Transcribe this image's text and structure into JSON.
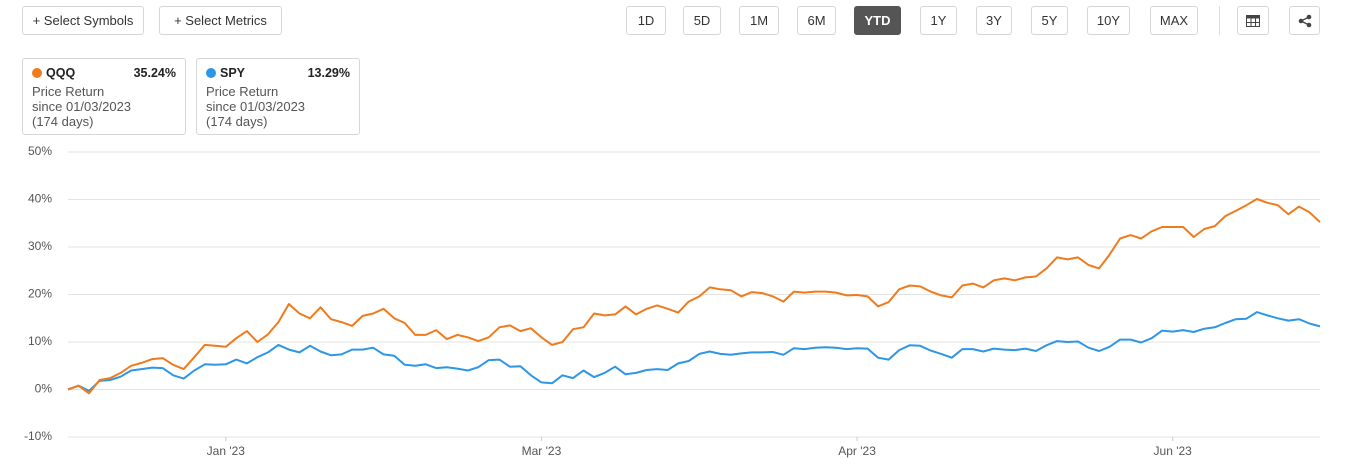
{
  "toolbar": {
    "add_buttons": [
      "+ Select Symbols",
      "+ Select Metrics"
    ],
    "ranges": [
      "1D",
      "5D",
      "1M",
      "6M",
      "YTD",
      "1Y",
      "3Y",
      "5Y",
      "10Y",
      "MAX"
    ],
    "active_range": "YTD"
  },
  "legend_cards": [
    {
      "return": "35.24%",
      "metric": "Price Return",
      "since": "since 01/03/2023",
      "days": "(174 days)"
    },
    {
      "return": "13.29%",
      "metric": "Price Return",
      "since": "since 01/03/2023",
      "days": "(174 days)"
    }
  ],
  "chart_data": {
    "type": "line",
    "categories": [
      null,
      null,
      null,
      null,
      null,
      null,
      null,
      null,
      null,
      null,
      null,
      null,
      null,
      null,
      null,
      "Jan '23",
      null,
      null,
      null,
      null,
      null,
      null,
      null,
      null,
      null,
      null,
      null,
      null,
      null,
      null,
      null,
      null,
      null,
      null,
      null,
      null,
      null,
      null,
      null,
      null,
      null,
      null,
      null,
      null,
      null,
      "Mar '23",
      null,
      null,
      null,
      null,
      null,
      null,
      null,
      null,
      null,
      null,
      null,
      null,
      null,
      null,
      null,
      null,
      null,
      null,
      null,
      null,
      null,
      null,
      null,
      null,
      null,
      null,
      null,
      null,
      null,
      "Apr '23",
      null,
      null,
      null,
      null,
      null,
      null,
      null,
      null,
      null,
      null,
      null,
      null,
      null,
      null,
      null,
      null,
      null,
      null,
      null,
      null,
      null,
      null,
      null,
      null,
      null,
      null,
      null,
      null,
      null,
      "Jun '23",
      null,
      null,
      null,
      null,
      null,
      null,
      null,
      null,
      null,
      null,
      null,
      null,
      null,
      null
    ],
    "series": [
      {
        "name": "QQQ",
        "color": "#f07b1d",
        "values": [
          0,
          0.8,
          -0.8,
          2,
          2.4,
          3.5,
          5,
          5.6,
          6.4,
          6.6,
          5.2,
          4.3,
          6.8,
          9.4,
          9.2,
          9,
          10.8,
          12.3,
          10,
          11.6,
          14.2,
          18,
          16,
          15,
          17.3,
          14.8,
          14.2,
          13.4,
          15.5,
          16,
          17,
          15,
          14,
          11.5,
          11.5,
          12.5,
          10.6,
          11.5,
          11,
          10.2,
          11,
          13.1,
          13.5,
          12.3,
          12.9,
          11,
          9.4,
          10,
          12.7,
          13.1,
          16,
          15.6,
          15.8,
          17.5,
          15.8,
          17,
          17.7,
          17,
          16.2,
          18.5,
          19.6,
          21.5,
          21.1,
          20.9,
          19.6,
          20.5,
          20.3,
          19.6,
          18.5,
          20.6,
          20.4,
          20.6,
          20.6,
          20.4,
          19.8,
          19.9,
          19.6,
          17.5,
          18.4,
          21.1,
          21.9,
          21.7,
          20.6,
          19.8,
          19.4,
          21.9,
          22.3,
          21.5,
          23,
          23.4,
          23,
          23.6,
          23.8,
          25.5,
          27.8,
          27.4,
          27.8,
          26.2,
          25.5,
          28.4,
          31.8,
          32.5,
          31.8,
          33.3,
          34.2,
          34.2,
          34.2,
          32.1,
          33.8,
          34.4,
          36.5,
          37.6,
          38.8,
          40.1,
          39.3,
          38.8,
          36.9,
          38.5,
          37.3,
          35.24
        ]
      },
      {
        "name": "SPY",
        "color": "#2d96e6",
        "values": [
          0,
          0.8,
          -0.3,
          1.8,
          2,
          2.7,
          4,
          4.3,
          4.6,
          4.5,
          3,
          2.3,
          4,
          5.3,
          5.2,
          5.3,
          6.3,
          5.5,
          6.8,
          7.8,
          9.4,
          8.4,
          7.8,
          9.2,
          8,
          7.2,
          7.4,
          8.4,
          8.4,
          8.8,
          7.4,
          7.1,
          5.2,
          5,
          5.3,
          4.5,
          4.7,
          4.4,
          4,
          4.7,
          6.2,
          6.3,
          4.8,
          4.9,
          3,
          1.5,
          1.3,
          3,
          2.4,
          4,
          2.6,
          3.5,
          4.8,
          3.2,
          3.5,
          4.1,
          4.3,
          4.1,
          5.5,
          6,
          7.5,
          8,
          7.5,
          7.3,
          7.6,
          7.8,
          7.8,
          7.9,
          7.3,
          8.7,
          8.5,
          8.8,
          8.9,
          8.8,
          8.5,
          8.7,
          8.6,
          6.7,
          6.3,
          8.3,
          9.3,
          9.2,
          8.2,
          7.5,
          6.7,
          8.5,
          8.5,
          8,
          8.6,
          8.4,
          8.3,
          8.6,
          8.1,
          9.3,
          10.2,
          10,
          10.1,
          8.8,
          8.1,
          9,
          10.5,
          10.5,
          9.9,
          10.8,
          12.4,
          12.2,
          12.5,
          12.1,
          12.8,
          13.1,
          14,
          14.8,
          14.9,
          16.3,
          15.6,
          15,
          14.5,
          14.8,
          13.9,
          13.29
        ]
      }
    ],
    "ylim": [
      -10,
      50
    ],
    "yticks": [
      {
        "value": -10,
        "label": "-10%"
      },
      {
        "value": 0,
        "label": "0%"
      },
      {
        "value": 10,
        "label": "10%"
      },
      {
        "value": 20,
        "label": "20%"
      },
      {
        "value": 30,
        "label": "30%"
      },
      {
        "value": 40,
        "label": "40%"
      },
      {
        "value": 50,
        "label": "50%"
      }
    ],
    "grid": true
  }
}
